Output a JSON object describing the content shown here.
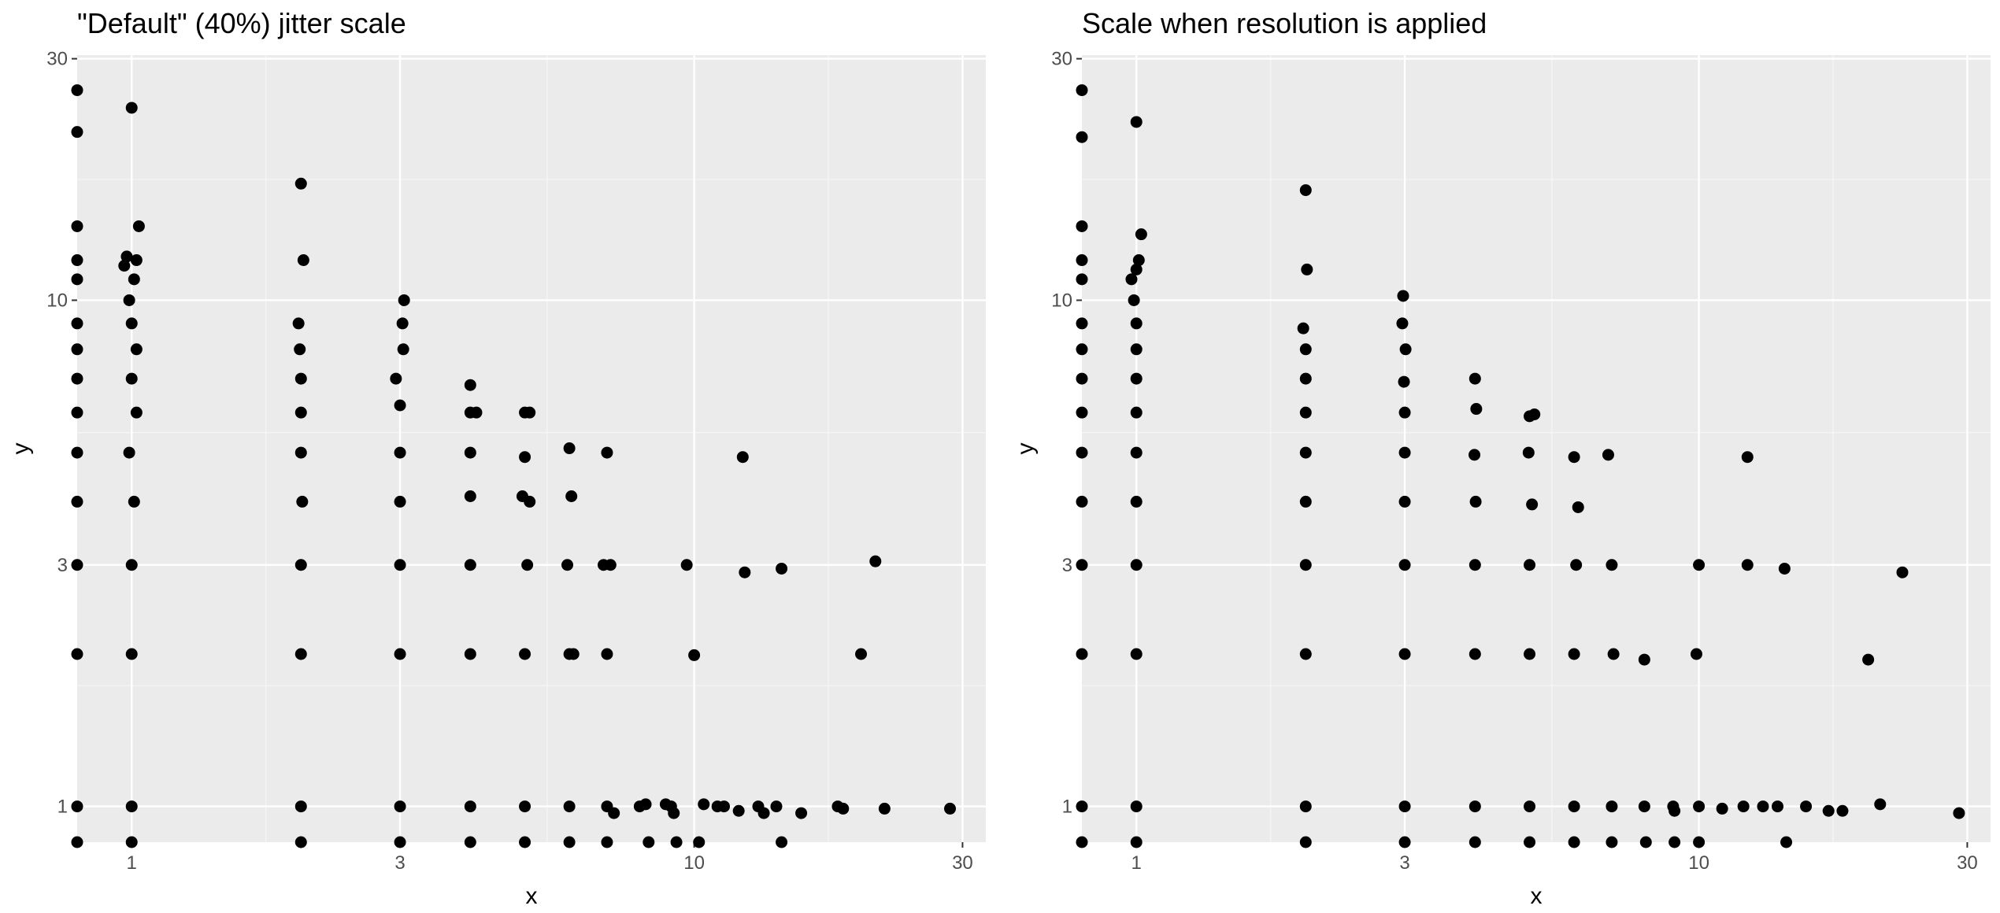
{
  "colors": {
    "panel_background": "#ebebeb",
    "major_grid": "#ffffff",
    "minor_grid": "#f7f7f7",
    "point": "#000000",
    "tick_text": "#4d4d4d"
  },
  "chart_data": [
    {
      "type": "scatter",
      "title": "\"Default\" (40%) jitter scale",
      "xlabel": "x",
      "ylabel": "y",
      "x_scale": "log10",
      "y_scale": "log10",
      "xlim": [
        0.8,
        33
      ],
      "ylim": [
        0.85,
        30.5
      ],
      "x_ticks": [
        1,
        3,
        10,
        30
      ],
      "x_tick_labels": [
        "1",
        "3",
        "10",
        "30"
      ],
      "y_ticks": [
        1,
        3,
        10,
        30
      ],
      "y_tick_labels": [
        "1",
        "3",
        "10",
        "30"
      ],
      "points": [
        [
          0.8,
          26
        ],
        [
          0.8,
          21.5
        ],
        [
          0.8,
          14
        ],
        [
          0.8,
          12
        ],
        [
          0.8,
          11
        ],
        [
          0.8,
          9
        ],
        [
          0.8,
          8
        ],
        [
          0.8,
          7
        ],
        [
          0.8,
          6
        ],
        [
          0.8,
          5
        ],
        [
          0.8,
          4
        ],
        [
          0.8,
          3
        ],
        [
          0.8,
          2
        ],
        [
          0.8,
          1
        ],
        [
          0.8,
          0.85
        ],
        [
          1.0,
          24
        ],
        [
          1.03,
          14
        ],
        [
          0.98,
          12.2
        ],
        [
          1.02,
          12
        ],
        [
          0.97,
          11.7
        ],
        [
          1.01,
          11
        ],
        [
          0.99,
          10
        ],
        [
          1.0,
          9
        ],
        [
          1.02,
          8
        ],
        [
          1.0,
          7
        ],
        [
          1.02,
          6
        ],
        [
          0.99,
          5
        ],
        [
          1.01,
          4
        ],
        [
          1.0,
          3
        ],
        [
          1.0,
          2
        ],
        [
          1.0,
          1
        ],
        [
          1.0,
          0.85
        ],
        [
          2.0,
          17
        ],
        [
          2.02,
          12
        ],
        [
          1.98,
          9
        ],
        [
          1.99,
          8
        ],
        [
          2.0,
          7
        ],
        [
          2.0,
          6
        ],
        [
          2.0,
          5
        ],
        [
          2.01,
          4
        ],
        [
          2.0,
          3
        ],
        [
          2.0,
          2
        ],
        [
          2.0,
          1
        ],
        [
          2.0,
          0.85
        ],
        [
          3.05,
          10
        ],
        [
          3.03,
          9
        ],
        [
          3.04,
          8
        ],
        [
          2.95,
          7
        ],
        [
          3.0,
          6.2
        ],
        [
          3.0,
          5
        ],
        [
          3.0,
          4
        ],
        [
          3.0,
          3
        ],
        [
          3.0,
          2
        ],
        [
          3.0,
          1
        ],
        [
          3.0,
          0.85
        ],
        [
          4.0,
          6.8
        ],
        [
          4.0,
          6
        ],
        [
          4.1,
          6
        ],
        [
          4.0,
          5
        ],
        [
          4.0,
          4.1
        ],
        [
          4.0,
          3
        ],
        [
          4.0,
          2
        ],
        [
          4.0,
          1
        ],
        [
          4.0,
          0.85
        ],
        [
          5.0,
          6
        ],
        [
          5.1,
          6
        ],
        [
          5.0,
          4.9
        ],
        [
          4.95,
          4.1
        ],
        [
          5.1,
          4
        ],
        [
          5.05,
          3
        ],
        [
          5.0,
          2
        ],
        [
          5.0,
          1
        ],
        [
          5.0,
          0.85
        ],
        [
          6.0,
          5.1
        ],
        [
          6.05,
          4.1
        ],
        [
          5.95,
          3
        ],
        [
          6.0,
          2
        ],
        [
          6.1,
          2
        ],
        [
          6.0,
          1
        ],
        [
          6.0,
          0.85
        ],
        [
          7.0,
          5
        ],
        [
          6.9,
          3
        ],
        [
          7.1,
          3
        ],
        [
          7.0,
          2
        ],
        [
          7.0,
          1
        ],
        [
          7.2,
          0.97
        ],
        [
          7.0,
          0.85
        ],
        [
          8.0,
          1
        ],
        [
          8.2,
          1.01
        ],
        [
          8.3,
          0.85
        ],
        [
          8.9,
          1.01
        ],
        [
          9.1,
          1
        ],
        [
          9.2,
          0.97
        ],
        [
          9.3,
          0.85
        ],
        [
          9.7,
          3
        ],
        [
          10.0,
          1.99
        ],
        [
          10.4,
          1.01
        ],
        [
          10.2,
          0.85
        ],
        [
          11.0,
          1
        ],
        [
          11.3,
          1
        ],
        [
          12.0,
          0.98
        ],
        [
          12.2,
          4.9
        ],
        [
          12.3,
          2.9
        ],
        [
          13.0,
          1
        ],
        [
          13.3,
          0.97
        ],
        [
          14.0,
          1
        ],
        [
          14.3,
          2.95
        ],
        [
          14.3,
          0.85
        ],
        [
          15.5,
          0.97
        ],
        [
          18.0,
          1
        ],
        [
          18.4,
          0.99
        ],
        [
          19.8,
          2
        ],
        [
          21.0,
          3.05
        ],
        [
          21.8,
          0.99
        ],
        [
          28.5,
          0.99
        ]
      ]
    },
    {
      "type": "scatter",
      "title": "Scale when resolution is applied",
      "xlabel": "x",
      "ylabel": "y",
      "x_scale": "log10",
      "y_scale": "log10",
      "xlim": [
        0.8,
        33
      ],
      "ylim": [
        0.85,
        30.5
      ],
      "x_ticks": [
        1,
        3,
        10,
        30
      ],
      "x_tick_labels": [
        "1",
        "3",
        "10",
        "30"
      ],
      "y_ticks": [
        1,
        3,
        10,
        30
      ],
      "y_tick_labels": [
        "1",
        "3",
        "10",
        "30"
      ],
      "points": [
        [
          0.8,
          26
        ],
        [
          0.8,
          21
        ],
        [
          0.8,
          14
        ],
        [
          0.8,
          12
        ],
        [
          0.8,
          11
        ],
        [
          0.8,
          9
        ],
        [
          0.8,
          8
        ],
        [
          0.8,
          7
        ],
        [
          0.8,
          6
        ],
        [
          0.8,
          5
        ],
        [
          0.8,
          4
        ],
        [
          0.8,
          3
        ],
        [
          0.8,
          2
        ],
        [
          0.8,
          1
        ],
        [
          0.8,
          0.85
        ],
        [
          1.0,
          22.5
        ],
        [
          1.02,
          13.5
        ],
        [
          1.01,
          12
        ],
        [
          1.0,
          11.5
        ],
        [
          0.98,
          11
        ],
        [
          0.99,
          10
        ],
        [
          1.0,
          9
        ],
        [
          1.0,
          8
        ],
        [
          1.0,
          7
        ],
        [
          1.0,
          6
        ],
        [
          1.0,
          5
        ],
        [
          1.0,
          4
        ],
        [
          1.0,
          3
        ],
        [
          1.0,
          2
        ],
        [
          1.0,
          1
        ],
        [
          1.0,
          0.85
        ],
        [
          2.0,
          16.5
        ],
        [
          2.01,
          11.5
        ],
        [
          1.98,
          8.8
        ],
        [
          2.0,
          8
        ],
        [
          2.0,
          7
        ],
        [
          2.0,
          6
        ],
        [
          2.0,
          5
        ],
        [
          2.0,
          4
        ],
        [
          2.0,
          3
        ],
        [
          2.0,
          2
        ],
        [
          2.0,
          1
        ],
        [
          2.0,
          0.85
        ],
        [
          2.98,
          10.2
        ],
        [
          2.97,
          9
        ],
        [
          3.01,
          8
        ],
        [
          2.99,
          6.9
        ],
        [
          3.0,
          6
        ],
        [
          3.0,
          5
        ],
        [
          3.0,
          4
        ],
        [
          3.0,
          3
        ],
        [
          3.0,
          2
        ],
        [
          3.0,
          1
        ],
        [
          3.0,
          0.85
        ],
        [
          4.0,
          7
        ],
        [
          4.02,
          6.1
        ],
        [
          3.99,
          4.95
        ],
        [
          4.01,
          4
        ],
        [
          4.0,
          3
        ],
        [
          4.0,
          2
        ],
        [
          4.0,
          1
        ],
        [
          4.0,
          0.85
        ],
        [
          5.0,
          5.9
        ],
        [
          5.1,
          5.95
        ],
        [
          4.98,
          5
        ],
        [
          5.05,
          3.95
        ],
        [
          5.0,
          3
        ],
        [
          5.0,
          2
        ],
        [
          5.0,
          1
        ],
        [
          5.0,
          0.85
        ],
        [
          6.0,
          4.9
        ],
        [
          6.1,
          3.9
        ],
        [
          6.05,
          3
        ],
        [
          6.0,
          2
        ],
        [
          6.0,
          1
        ],
        [
          6.0,
          0.85
        ],
        [
          6.9,
          4.95
        ],
        [
          7.0,
          3
        ],
        [
          7.05,
          2
        ],
        [
          7.0,
          1
        ],
        [
          7.0,
          0.85
        ],
        [
          8.0,
          1
        ],
        [
          8.0,
          1.95
        ],
        [
          8.05,
          0.85
        ],
        [
          9.0,
          1
        ],
        [
          9.05,
          0.98
        ],
        [
          9.05,
          0.85
        ],
        [
          9.9,
          2
        ],
        [
          10.0,
          3
        ],
        [
          10.0,
          0.85
        ],
        [
          10.0,
          1
        ],
        [
          11.0,
          0.99
        ],
        [
          12.0,
          1
        ],
        [
          12.2,
          4.9
        ],
        [
          12.2,
          3
        ],
        [
          13.0,
          1
        ],
        [
          13.8,
          1
        ],
        [
          14.2,
          2.95
        ],
        [
          14.3,
          0.85
        ],
        [
          15.5,
          1
        ],
        [
          17.0,
          0.98
        ],
        [
          18.0,
          0.98
        ],
        [
          20.0,
          1.95
        ],
        [
          21.0,
          1.01
        ],
        [
          23.0,
          2.9
        ],
        [
          29.0,
          0.97
        ]
      ]
    }
  ]
}
